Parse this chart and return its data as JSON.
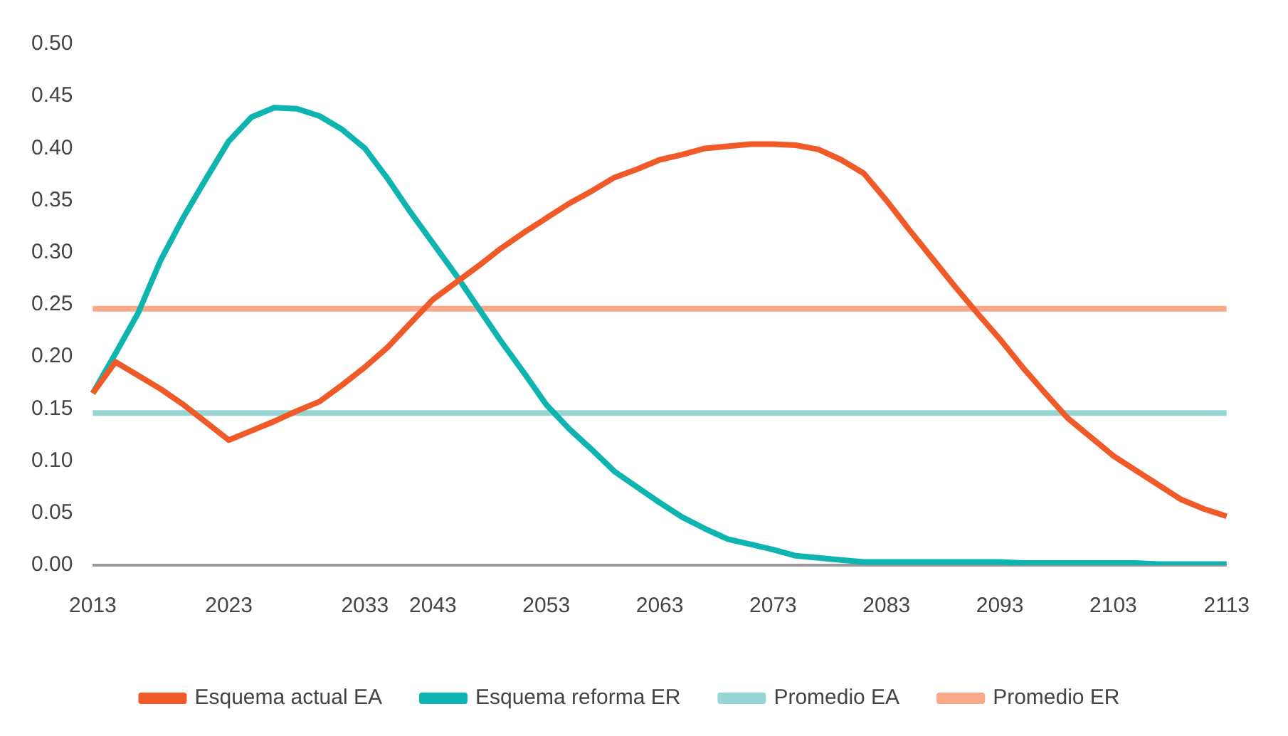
{
  "chart_data": {
    "type": "line",
    "categories": [
      "2013",
      null,
      null,
      null,
      null,
      null,
      "2023",
      null,
      null,
      null,
      null,
      null,
      "2033",
      null,
      null,
      "2043",
      null,
      null,
      null,
      null,
      "2053",
      null,
      null,
      null,
      null,
      "2063",
      null,
      null,
      null,
      null,
      "2073",
      null,
      null,
      null,
      null,
      "2083",
      null,
      null,
      null,
      null,
      "2093",
      null,
      null,
      null,
      null,
      "2103",
      null,
      null,
      null,
      null,
      "2113"
    ],
    "series": [
      {
        "name": "Esquema actual EA",
        "color": "#f05a28",
        "values": [
          0.165,
          0.195,
          0.182,
          0.169,
          0.154,
          0.137,
          0.12,
          0.129,
          0.138,
          0.148,
          0.157,
          0.173,
          0.19,
          0.209,
          0.232,
          0.255,
          0.271,
          0.287,
          0.304,
          0.319,
          0.333,
          0.347,
          0.359,
          0.372,
          0.38,
          0.389,
          0.394,
          0.4,
          0.402,
          0.404,
          0.404,
          0.403,
          0.399,
          0.389,
          0.376,
          0.35,
          0.322,
          0.295,
          0.268,
          0.242,
          0.217,
          0.19,
          0.165,
          0.141,
          0.123,
          0.105,
          0.091,
          0.077,
          0.063,
          0.054,
          0.047
        ]
      },
      {
        "name": "Esquema reforma ER",
        "color": "#0eb4b0",
        "values": [
          0.165,
          0.203,
          0.242,
          0.293,
          0.334,
          0.371,
          0.407,
          0.43,
          0.439,
          0.438,
          0.431,
          0.418,
          0.4,
          0.371,
          0.339,
          0.309,
          0.279,
          0.247,
          0.215,
          0.185,
          0.154,
          0.131,
          0.111,
          0.09,
          0.075,
          0.06,
          0.046,
          0.035,
          0.025,
          0.02,
          0.015,
          0.009,
          0.007,
          0.005,
          0.003,
          0.003,
          0.003,
          0.003,
          0.003,
          0.003,
          0.003,
          0.002,
          0.002,
          0.002,
          0.002,
          0.002,
          0.002,
          0.001,
          0.001,
          0.001,
          0.001
        ]
      },
      {
        "name": "Promedio EA",
        "color": "#97d5d2",
        "values": [
          0.146,
          0.146,
          0.146,
          0.146,
          0.146,
          0.146,
          0.146,
          0.146,
          0.146,
          0.146,
          0.146,
          0.146,
          0.146,
          0.146,
          0.146,
          0.146,
          0.146,
          0.146,
          0.146,
          0.146,
          0.146,
          0.146,
          0.146,
          0.146,
          0.146,
          0.146,
          0.146,
          0.146,
          0.146,
          0.146,
          0.146,
          0.146,
          0.146,
          0.146,
          0.146,
          0.146,
          0.146,
          0.146,
          0.146,
          0.146,
          0.146,
          0.146,
          0.146,
          0.146,
          0.146,
          0.146,
          0.146,
          0.146,
          0.146,
          0.146,
          0.146
        ]
      },
      {
        "name": "Promedio ER",
        "color": "#f9a989",
        "values": [
          0.246,
          0.246,
          0.246,
          0.246,
          0.246,
          0.246,
          0.246,
          0.246,
          0.246,
          0.246,
          0.246,
          0.246,
          0.246,
          0.246,
          0.246,
          0.246,
          0.246,
          0.246,
          0.246,
          0.246,
          0.246,
          0.246,
          0.246,
          0.246,
          0.246,
          0.246,
          0.246,
          0.246,
          0.246,
          0.246,
          0.246,
          0.246,
          0.246,
          0.246,
          0.246,
          0.246,
          0.246,
          0.246,
          0.246,
          0.246,
          0.246,
          0.246,
          0.246,
          0.246,
          0.246,
          0.246,
          0.246,
          0.246,
          0.246,
          0.246,
          0.246
        ]
      }
    ],
    "ylim": [
      0,
      0.5
    ],
    "yticks": [
      {
        "value": 0,
        "label": "0.00"
      },
      {
        "value": 0.05,
        "label": "0.05"
      },
      {
        "value": 0.1,
        "label": "0.10"
      },
      {
        "value": 0.15,
        "label": "0.15"
      },
      {
        "value": 0.2,
        "label": "0.20"
      },
      {
        "value": 0.25,
        "label": "0.25"
      },
      {
        "value": 0.3,
        "label": "0.30"
      },
      {
        "value": 0.35,
        "label": "0.35"
      },
      {
        "value": 0.4,
        "label": "0.40"
      },
      {
        "value": 0.45,
        "label": "0.45"
      },
      {
        "value": 0.5,
        "label": "0.50"
      }
    ],
    "grid": false,
    "legend": "bottom",
    "marker": "none",
    "line_style": "solid"
  }
}
